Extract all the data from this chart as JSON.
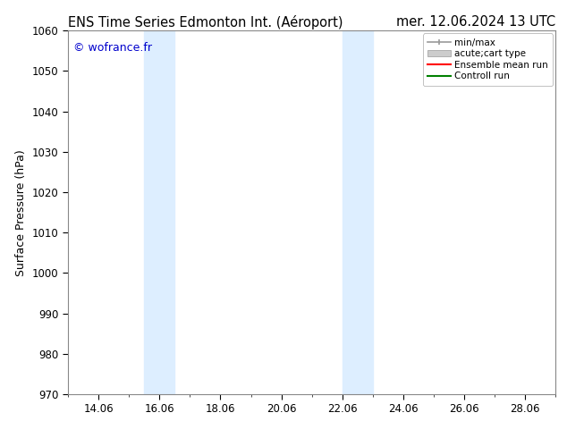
{
  "title_left": "ENS Time Series Edmonton Int. (Aéroport)",
  "title_right": "mer. 12.06.2024 13 UTC",
  "ylabel": "Surface Pressure (hPa)",
  "ylim": [
    970,
    1060
  ],
  "yticks": [
    970,
    980,
    990,
    1000,
    1010,
    1020,
    1030,
    1040,
    1050,
    1060
  ],
  "xtick_labels": [
    "14.06",
    "16.06",
    "18.06",
    "20.06",
    "22.06",
    "24.06",
    "26.06",
    "28.06"
  ],
  "xtick_positions": [
    1,
    3,
    5,
    7,
    9,
    11,
    13,
    15
  ],
  "xlim": [
    0,
    16
  ],
  "watermark": "© wofrance.fr",
  "watermark_color": "#0000cc",
  "bg_color": "#ffffff",
  "plot_bg_color": "#ffffff",
  "shaded_bands": [
    {
      "xstart": 2.5,
      "xend": 3.5,
      "color": "#ddeeff"
    },
    {
      "xstart": 9.0,
      "xend": 10.0,
      "color": "#ddeeff"
    }
  ],
  "legend_fontsize": 7.5,
  "title_fontsize": 10.5,
  "tick_fontsize": 8.5,
  "ylabel_fontsize": 9
}
